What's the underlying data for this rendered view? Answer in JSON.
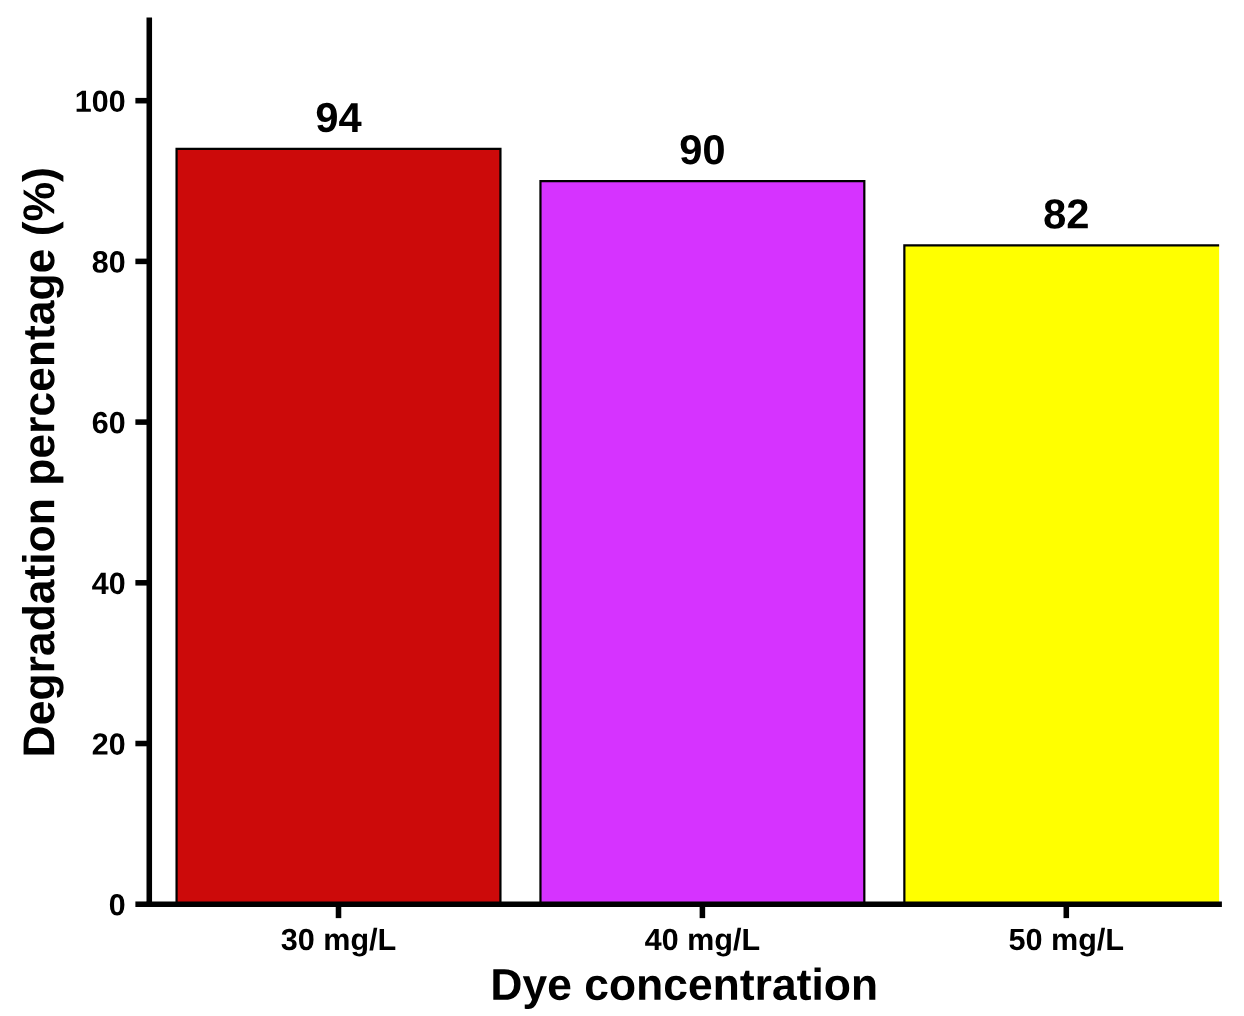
{
  "chart_data": {
    "type": "bar",
    "xlabel": "Dye concentration",
    "ylabel": "Degradation percentage (%)",
    "categories": [
      "30 mg/L",
      "40 mg/L",
      "50 mg/L"
    ],
    "values": [
      94,
      90,
      82
    ],
    "colors": [
      "#cc0a0a",
      "#d633ff",
      "#ffff00"
    ],
    "ylim": [
      0,
      110
    ],
    "yticks": [
      0,
      20,
      40,
      60,
      80,
      100
    ],
    "data_labels": true,
    "grid": false,
    "legend": false
  }
}
